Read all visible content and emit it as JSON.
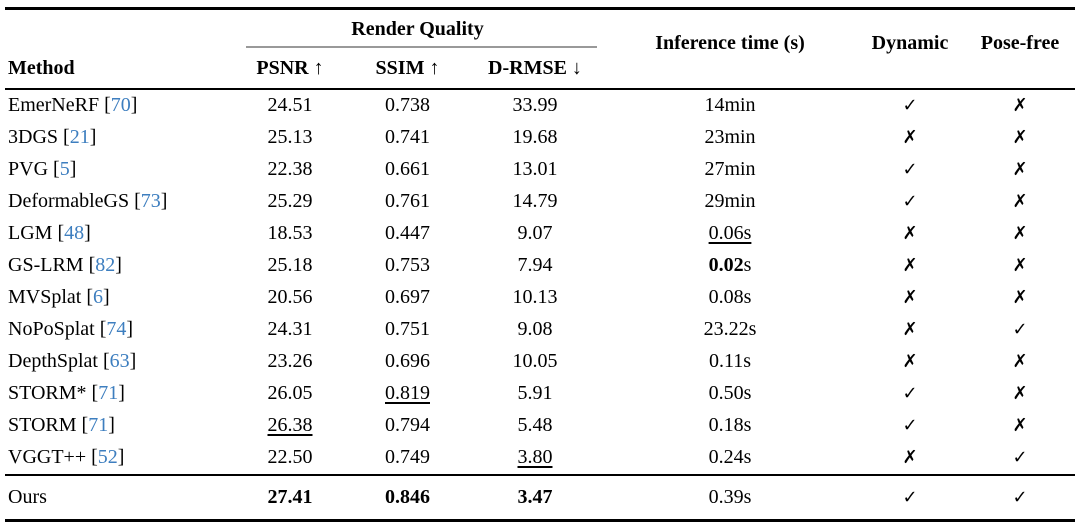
{
  "table": {
    "headers": {
      "method": "Method",
      "render_quality_group": "Render Quality",
      "psnr": "PSNR ↑",
      "ssim": "SSIM ↑",
      "drmse": "D-RMSE ↓",
      "inference_time": "Inference time (s)",
      "dynamic": "Dynamic",
      "posefree": "Pose-free"
    },
    "icons": {
      "check": "✓",
      "cross": "✗"
    },
    "colors": {
      "citation_blue": "#3d7ebf",
      "rule_black": "#000000",
      "cmidrule_gray": "#999999"
    },
    "rows": [
      {
        "method": "EmerNeRF",
        "cite": "70",
        "psnr": {
          "t": "24.51"
        },
        "ssim": {
          "t": "0.738"
        },
        "drmse": {
          "t": "33.99"
        },
        "time": {
          "t": "14min"
        },
        "dynamic": "check",
        "posefree": "cross"
      },
      {
        "method": "3DGS",
        "cite": "21",
        "psnr": {
          "t": "25.13"
        },
        "ssim": {
          "t": "0.741"
        },
        "drmse": {
          "t": "19.68"
        },
        "time": {
          "t": "23min"
        },
        "dynamic": "cross",
        "posefree": "cross"
      },
      {
        "method": "PVG",
        "cite": "5",
        "psnr": {
          "t": "22.38"
        },
        "ssim": {
          "t": "0.661"
        },
        "drmse": {
          "t": "13.01"
        },
        "time": {
          "t": "27min"
        },
        "dynamic": "check",
        "posefree": "cross"
      },
      {
        "method": "DeformableGS",
        "cite": "73",
        "psnr": {
          "t": "25.29"
        },
        "ssim": {
          "t": "0.761"
        },
        "drmse": {
          "t": "14.79"
        },
        "time": {
          "t": "29min"
        },
        "dynamic": "check",
        "posefree": "cross"
      },
      {
        "method": "LGM",
        "cite": "48",
        "psnr": {
          "t": "18.53"
        },
        "ssim": {
          "t": "0.447"
        },
        "drmse": {
          "t": "9.07"
        },
        "time": {
          "t": "0.06s",
          "u": true
        },
        "dynamic": "cross",
        "posefree": "cross"
      },
      {
        "method": "GS-LRM",
        "cite": "82",
        "psnr": {
          "t": "25.18"
        },
        "ssim": {
          "t": "0.753"
        },
        "drmse": {
          "t": "7.94"
        },
        "time": {
          "t": "0.02",
          "b": true,
          "suffix": "s"
        },
        "dynamic": "cross",
        "posefree": "cross"
      },
      {
        "method": "MVSplat",
        "cite": "6",
        "psnr": {
          "t": "20.56"
        },
        "ssim": {
          "t": "0.697"
        },
        "drmse": {
          "t": "10.13"
        },
        "time": {
          "t": "0.08s"
        },
        "dynamic": "cross",
        "posefree": "cross"
      },
      {
        "method": "NoPoSplat",
        "cite": "74",
        "psnr": {
          "t": "24.31"
        },
        "ssim": {
          "t": "0.751"
        },
        "drmse": {
          "t": "9.08"
        },
        "time": {
          "t": "23.22s"
        },
        "dynamic": "cross",
        "posefree": "check"
      },
      {
        "method": "DepthSplat",
        "cite": "63",
        "psnr": {
          "t": "23.26"
        },
        "ssim": {
          "t": "0.696"
        },
        "drmse": {
          "t": "10.05"
        },
        "time": {
          "t": "0.11s"
        },
        "dynamic": "cross",
        "posefree": "cross"
      },
      {
        "method": "STORM*",
        "cite": "71",
        "psnr": {
          "t": "26.05"
        },
        "ssim": {
          "t": "0.819",
          "u": true
        },
        "drmse": {
          "t": "5.91"
        },
        "time": {
          "t": "0.50s"
        },
        "dynamic": "check",
        "posefree": "cross"
      },
      {
        "method": "STORM",
        "cite": "71",
        "psnr": {
          "t": "26.38",
          "u": true
        },
        "ssim": {
          "t": "0.794"
        },
        "drmse": {
          "t": "5.48"
        },
        "time": {
          "t": "0.18s"
        },
        "dynamic": "check",
        "posefree": "cross"
      },
      {
        "method": "VGGT++",
        "cite": "52",
        "psnr": {
          "t": "22.50"
        },
        "ssim": {
          "t": "0.749"
        },
        "drmse": {
          "t": "3.80",
          "u": true
        },
        "time": {
          "t": "0.24s"
        },
        "dynamic": "cross",
        "posefree": "check"
      },
      {
        "method": "Ours",
        "cite": null,
        "ours": true,
        "psnr": {
          "t": "27.41",
          "b": true
        },
        "ssim": {
          "t": "0.846",
          "b": true
        },
        "drmse": {
          "t": "3.47",
          "b": true
        },
        "time": {
          "t": "0.39s"
        },
        "dynamic": "check",
        "posefree": "check"
      }
    ]
  }
}
